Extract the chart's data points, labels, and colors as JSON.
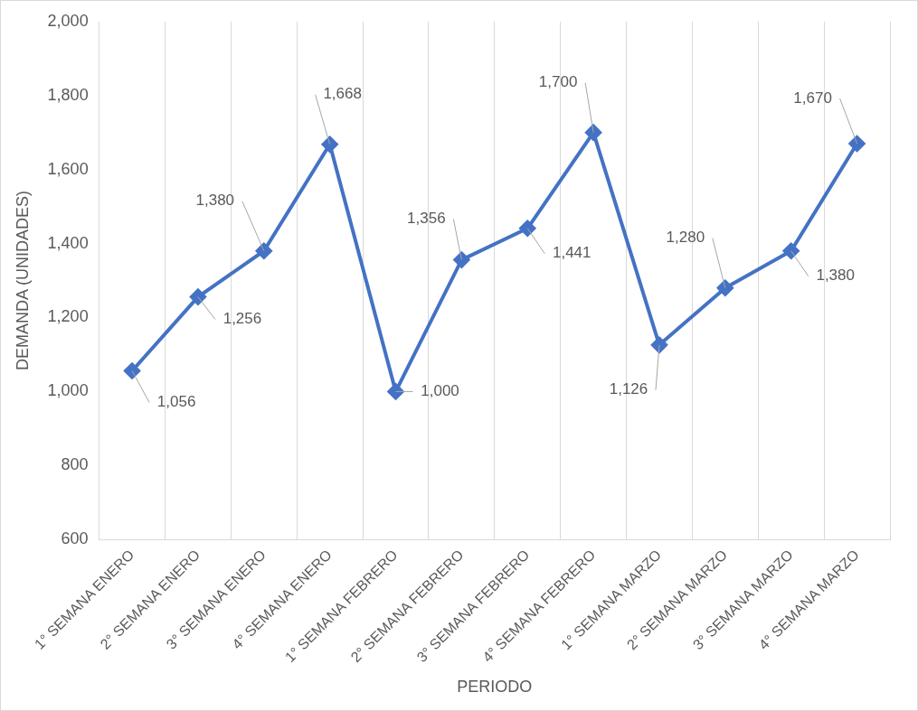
{
  "chart_data": {
    "type": "line",
    "xlabel": "PERIODO",
    "ylabel": "DEMANDA (UNIDADES)",
    "categories": [
      "1° SEMANA ENERO",
      "2° SEMANA ENERO",
      "3° SEMANA ENERO",
      "4° SEMANA ENERO",
      "1° SEMANA FEBRERO",
      "2° SEMANA FEBRERO",
      "3° SEMANA FEBRERO",
      "4° SEMANA FEBRERO",
      "1° SEMANA MARZO",
      "2° SEMANA MARZO",
      "3° SEMANA MARZO",
      "4° SEMANA MARZO"
    ],
    "series": [
      {
        "color": "#4472c4",
        "values": [
          1056,
          1256,
          1380,
          1668,
          1000,
          1356,
          1441,
          1700,
          1126,
          1280,
          1380,
          1670
        ],
        "value_labels": [
          "1,056",
          "1,256",
          "1,380",
          "1,668",
          "1,000",
          "1,356",
          "1,441",
          "1,700",
          "1,126",
          "1,280",
          "1,380",
          "1,670"
        ]
      }
    ],
    "ylim": [
      600,
      2000
    ],
    "yticks": [
      {
        "value": 600,
        "label": "600"
      },
      {
        "value": 800,
        "label": "800"
      },
      {
        "value": 1000,
        "label": "1,000"
      },
      {
        "value": 1200,
        "label": "1,200"
      },
      {
        "value": 1400,
        "label": "1,400"
      },
      {
        "value": 1600,
        "label": "1,600"
      },
      {
        "value": 1800,
        "label": "1,800"
      },
      {
        "value": 2000,
        "label": "2,000"
      }
    ],
    "grid": "x",
    "legend": false,
    "marker": "diamond",
    "line_style": "solid"
  }
}
